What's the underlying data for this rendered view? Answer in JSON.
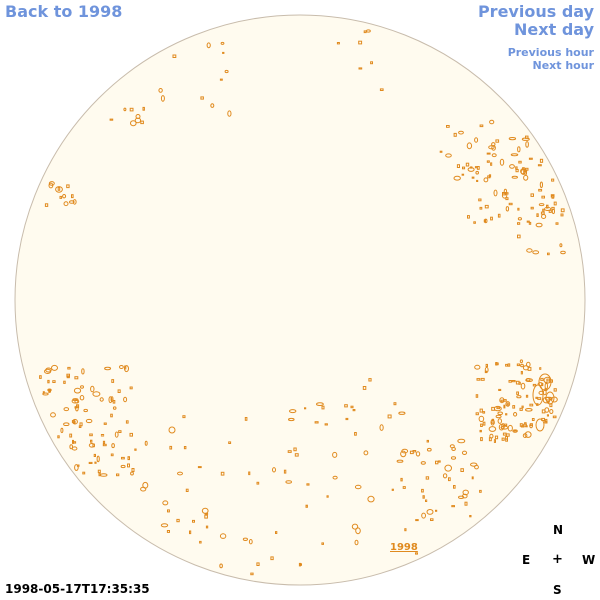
{
  "nav": {
    "back": "Back to 1998",
    "previous_day": "Previous day",
    "next_day": "Next day",
    "previous_hour": "Previous hour",
    "next_hour": "Next hour"
  },
  "map": {
    "year_label": "1998",
    "timestamp": "1998-05-17T17:35:35"
  },
  "compass": {
    "north": "N",
    "south": "S",
    "east": "E",
    "west": "W",
    "center": "+"
  },
  "colors": {
    "link_blue": "#6f94dc",
    "disk_fill": "#fffbef",
    "disk_border": "#c8bcac",
    "contour_orange": "#e08a1e"
  }
}
